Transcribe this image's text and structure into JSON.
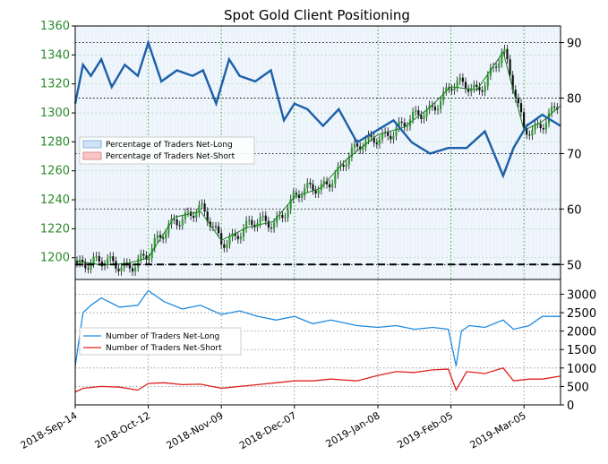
{
  "chart_data": [
    {
      "type": "line",
      "title": "Spot Gold Client Positioning",
      "price_axis": {
        "ticks": [
          1200,
          1220,
          1240,
          1260,
          1280,
          1300,
          1320,
          1340,
          1360
        ],
        "range": [
          1185,
          1360
        ]
      },
      "percent_axis": {
        "ticks": [
          50,
          60,
          70,
          80,
          90
        ],
        "range": [
          47.3,
          93
        ]
      },
      "x_ticks": [
        "2018-Sep-14",
        "2018-Oct-12",
        "2018-Nov-09",
        "2018-Dec-07",
        "2019-Jan-08",
        "2019-Feb-05",
        "2019-Mar-05"
      ],
      "x_range": [
        "2018-Sep-14",
        "2019-Mar-19"
      ],
      "legend": {
        "placement": "upper-left",
        "entries": [
          "Percentage of Traders Net-Long",
          "Percentage of Traders Net-Short"
        ]
      },
      "reference_lines": {
        "dashed_black": 50,
        "dotted": [
          90,
          80,
          70,
          60,
          50
        ]
      },
      "grid": true,
      "price_line": {
        "x": [
          "2018-Sep-14",
          "2018-Sep-24",
          "2018-Oct-04",
          "2018-Oct-12",
          "2018-Oct-22",
          "2018-Nov-01",
          "2018-Nov-09",
          "2018-Nov-19",
          "2018-Nov-29",
          "2018-Dec-07",
          "2018-Dec-17",
          "2018-Dec-27",
          "2019-Jan-08",
          "2019-Jan-18",
          "2019-Jan-28",
          "2019-Feb-05",
          "2019-Feb-15",
          "2019-Feb-25",
          "2019-Mar-05",
          "2019-Mar-12",
          "2019-Mar-19"
        ],
        "values": [
          1198,
          1195,
          1196,
          1200,
          1228,
          1232,
          1212,
          1221,
          1225,
          1242,
          1248,
          1268,
          1285,
          1290,
          1304,
          1318,
          1316,
          1342,
          1288,
          1294,
          1305
        ]
      },
      "net_long_pct": {
        "x": [
          "2018-Sep-14",
          "2018-Sep-17",
          "2018-Sep-20",
          "2018-Sep-24",
          "2018-Sep-28",
          "2018-Oct-03",
          "2018-Oct-08",
          "2018-Oct-12",
          "2018-Oct-17",
          "2018-Oct-23",
          "2018-Oct-29",
          "2018-Nov-02",
          "2018-Nov-07",
          "2018-Nov-12",
          "2018-Nov-16",
          "2018-Nov-22",
          "2018-Nov-28",
          "2018-Dec-03",
          "2018-Dec-07",
          "2018-Dec-12",
          "2018-Dec-18",
          "2018-Dec-24",
          "2018-Dec-31",
          "2019-Jan-07",
          "2019-Jan-14",
          "2019-Jan-21",
          "2019-Jan-28",
          "2019-Feb-04",
          "2019-Feb-11",
          "2019-Feb-18",
          "2019-Feb-25",
          "2019-Mar-01",
          "2019-Mar-06",
          "2019-Mar-12",
          "2019-Mar-19"
        ],
        "values": [
          79,
          86,
          84,
          87,
          82,
          86,
          84,
          90,
          83,
          85,
          84,
          85,
          79,
          87,
          84,
          83,
          85,
          76,
          79,
          78,
          75,
          78,
          72,
          74,
          76,
          72,
          70,
          71,
          71,
          74,
          66,
          71,
          75,
          77,
          75
        ]
      }
    },
    {
      "type": "line",
      "count_axis": {
        "ticks": [
          0,
          500,
          1000,
          1500,
          2000,
          2500,
          3000
        ],
        "range": [
          0,
          3400
        ]
      },
      "legend": {
        "placement": "upper-left",
        "entries": [
          "Number of Traders Net-Long",
          "Number of Traders Net-Short"
        ]
      },
      "grid": true,
      "series": [
        {
          "name": "Number of Traders Net-Long",
          "color": "#1f8ae0",
          "x": [
            "2018-Sep-14",
            "2018-Sep-17",
            "2018-Sep-20",
            "2018-Sep-24",
            "2018-Oct-01",
            "2018-Oct-08",
            "2018-Oct-12",
            "2018-Oct-18",
            "2018-Oct-25",
            "2018-Nov-01",
            "2018-Nov-09",
            "2018-Nov-16",
            "2018-Nov-23",
            "2018-Nov-30",
            "2018-Dec-07",
            "2018-Dec-14",
            "2018-Dec-21",
            "2018-Dec-31",
            "2019-Jan-08",
            "2019-Jan-15",
            "2019-Jan-22",
            "2019-Jan-29",
            "2019-Feb-04",
            "2019-Feb-07",
            "2019-Feb-09",
            "2019-Feb-12",
            "2019-Feb-18",
            "2019-Feb-25",
            "2019-Mar-01",
            "2019-Mar-07",
            "2019-Mar-12",
            "2019-Mar-19"
          ],
          "values": [
            1050,
            2500,
            2700,
            2900,
            2650,
            2700,
            3100,
            2800,
            2600,
            2700,
            2450,
            2550,
            2400,
            2300,
            2400,
            2200,
            2300,
            2150,
            2100,
            2150,
            2050,
            2100,
            2050,
            1050,
            2000,
            2150,
            2100,
            2300,
            2050,
            2150,
            2400,
            2400
          ]
        },
        {
          "name": "Number of Traders Net-Short",
          "color": "#e02020",
          "x": [
            "2018-Sep-14",
            "2018-Sep-17",
            "2018-Sep-24",
            "2018-Oct-01",
            "2018-Oct-08",
            "2018-Oct-12",
            "2018-Oct-18",
            "2018-Oct-25",
            "2018-Nov-01",
            "2018-Nov-09",
            "2018-Nov-16",
            "2018-Nov-23",
            "2018-Nov-30",
            "2018-Dec-07",
            "2018-Dec-14",
            "2018-Dec-21",
            "2018-Dec-31",
            "2019-Jan-08",
            "2019-Jan-15",
            "2019-Jan-22",
            "2019-Jan-29",
            "2019-Feb-04",
            "2019-Feb-07",
            "2019-Feb-11",
            "2019-Feb-18",
            "2019-Feb-25",
            "2019-Mar-01",
            "2019-Mar-07",
            "2019-Mar-12",
            "2019-Mar-19"
          ],
          "values": [
            350,
            450,
            500,
            480,
            400,
            580,
            600,
            550,
            560,
            450,
            500,
            550,
            600,
            650,
            650,
            700,
            650,
            800,
            900,
            880,
            950,
            970,
            400,
            900,
            850,
            1000,
            650,
            700,
            700,
            780
          ]
        }
      ]
    }
  ]
}
